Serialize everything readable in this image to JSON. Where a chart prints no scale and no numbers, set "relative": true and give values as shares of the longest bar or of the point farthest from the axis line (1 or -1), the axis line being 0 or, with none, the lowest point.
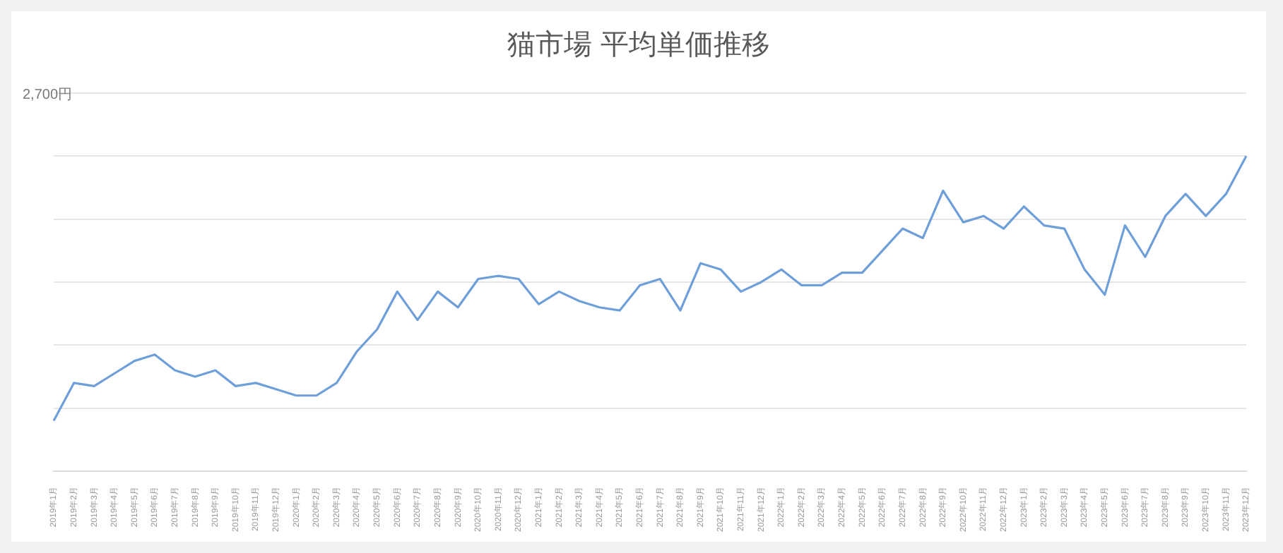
{
  "chart_data": {
    "type": "line",
    "title": "猫市場 平均単価推移",
    "relative": true,
    "grid": "y",
    "marker": "none",
    "line_style": "solid",
    "legend": false,
    "annotations": [
      "2,700円"
    ],
    "categories": [
      "2019年1月",
      "2019年2月",
      "2019年3月",
      "2019年4月",
      "2019年5月",
      "2019年6月",
      "2019年7月",
      "2019年8月",
      "2019年9月",
      "2019年10月",
      "2019年11月",
      "2019年12月",
      "2020年1月",
      "2020年2月",
      "2020年3月",
      "2020年4月",
      "2020年5月",
      "2020年6月",
      "2020年7月",
      "2020年8月",
      "2020年9月",
      "2020年10月",
      "2020年11月",
      "2020年12月",
      "2021年1月",
      "2021年2月",
      "2021年3月",
      "2021年4月",
      "2021年5月",
      "2021年6月",
      "2021年7月",
      "2021年8月",
      "2021年9月",
      "2021年10月",
      "2021年11月",
      "2021年12月",
      "2022年1月",
      "2022年2月",
      "2022年3月",
      "2022年4月",
      "2022年5月",
      "2022年6月",
      "2022年7月",
      "2022年8月",
      "2022年9月",
      "2022年10月",
      "2022年11月",
      "2022年12月",
      "2023年1月",
      "2023年2月",
      "2023年3月",
      "2023年4月",
      "2023年5月",
      "2023年6月",
      "2023年7月",
      "2023年8月",
      "2023年9月",
      "2023年10月",
      "2023年11月",
      "2023年12月"
    ],
    "series": [
      {
        "color": "#6f9fd8",
        "values": [
          0.16,
          0.28,
          0.27,
          0.31,
          0.35,
          0.37,
          0.32,
          0.3,
          0.32,
          0.27,
          0.28,
          0.26,
          0.24,
          0.24,
          0.28,
          0.38,
          0.45,
          0.57,
          0.48,
          0.57,
          0.52,
          0.61,
          0.62,
          0.61,
          0.53,
          0.57,
          0.54,
          0.52,
          0.51,
          0.59,
          0.61,
          0.51,
          0.66,
          0.64,
          0.57,
          0.6,
          0.64,
          0.59,
          0.59,
          0.63,
          0.63,
          0.7,
          0.77,
          0.74,
          0.89,
          0.79,
          0.81,
          0.77,
          0.84,
          0.78,
          0.77,
          0.64,
          0.56,
          0.78,
          0.68,
          0.81,
          0.88,
          0.81,
          0.88,
          1
        ]
      }
    ]
  }
}
